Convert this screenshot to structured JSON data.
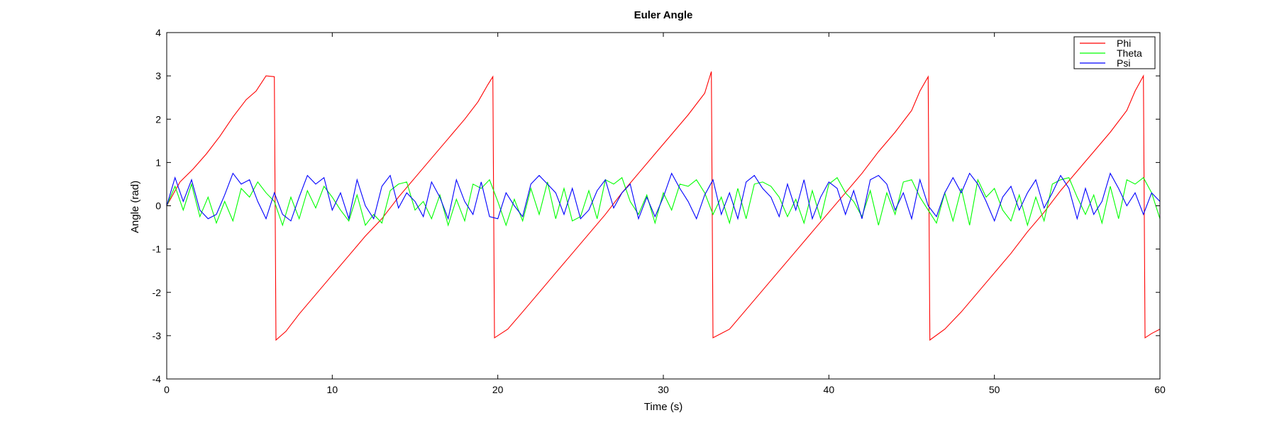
{
  "chart_data": {
    "type": "line",
    "title": "Euler Angle",
    "xlabel": "Time (s)",
    "ylabel": "Angle (rad)",
    "xlim": [
      0,
      60
    ],
    "ylim": [
      -4,
      4
    ],
    "xticks": [
      0,
      10,
      20,
      30,
      40,
      50,
      60
    ],
    "yticks": [
      -4,
      -3,
      -2,
      -1,
      0,
      1,
      2,
      3,
      4
    ],
    "grid": false,
    "legend_position": "top-right",
    "series": [
      {
        "name": "Phi",
        "color": "#ff0000",
        "x": [
          0,
          0.8,
          1.6,
          2.4,
          3.2,
          4.0,
          4.8,
          5.4,
          6.0,
          6.5,
          6.6,
          7.2,
          8.0,
          9.0,
          10.0,
          11.0,
          12.0,
          13.0,
          14.0,
          15.0,
          16.0,
          17.0,
          18.0,
          18.8,
          19.4,
          19.7,
          19.8,
          20.6,
          21.5,
          22.5,
          23.5,
          24.5,
          25.5,
          26.5,
          27.5,
          28.5,
          29.5,
          30.5,
          31.5,
          32.5,
          32.9,
          33.0,
          34.0,
          35.0,
          36.0,
          37.0,
          38.0,
          39.0,
          40.0,
          41.0,
          42.0,
          43.0,
          44.0,
          45.0,
          45.5,
          46.0,
          46.1,
          47.0,
          48.0,
          49.0,
          50.0,
          51.0,
          52.0,
          53.0,
          54.0,
          55.0,
          56.0,
          57.0,
          58.0,
          58.5,
          59.0,
          59.1,
          59.5,
          60.0
        ],
        "y": [
          0,
          0.55,
          0.85,
          1.2,
          1.6,
          2.05,
          2.45,
          2.65,
          3.0,
          2.98,
          -3.1,
          -2.9,
          -2.5,
          -2.05,
          -1.6,
          -1.15,
          -0.7,
          -0.3,
          0.2,
          0.65,
          1.1,
          1.55,
          2.0,
          2.4,
          2.8,
          2.98,
          -3.05,
          -2.85,
          -2.45,
          -2.0,
          -1.55,
          -1.1,
          -0.65,
          -0.2,
          0.3,
          0.75,
          1.2,
          1.65,
          2.1,
          2.6,
          3.1,
          -3.05,
          -2.85,
          -2.4,
          -1.95,
          -1.5,
          -1.05,
          -0.6,
          -0.15,
          0.3,
          0.75,
          1.25,
          1.7,
          2.2,
          2.65,
          2.98,
          -3.1,
          -2.85,
          -2.45,
          -2.0,
          -1.55,
          -1.1,
          -0.6,
          -0.15,
          0.35,
          0.8,
          1.25,
          1.7,
          2.2,
          2.65,
          3.0,
          -3.05,
          -2.95,
          -2.85
        ]
      },
      {
        "name": "Theta",
        "color": "#00ff00",
        "x": [
          0,
          0.5,
          1.0,
          1.5,
          2.0,
          2.5,
          3.0,
          3.5,
          4.0,
          4.5,
          5.0,
          5.5,
          6.0,
          6.5,
          7.0,
          7.5,
          8.0,
          8.5,
          9.0,
          9.5,
          10.0,
          10.5,
          11.0,
          11.5,
          12.0,
          12.5,
          13.0,
          13.5,
          14.0,
          14.5,
          15.0,
          15.5,
          16.0,
          16.5,
          17.0,
          17.5,
          18.0,
          18.5,
          19.0,
          19.5,
          20.0,
          20.5,
          21.0,
          21.5,
          22.0,
          22.5,
          23.0,
          23.5,
          24.0,
          24.5,
          25.0,
          25.5,
          26.0,
          26.5,
          27.0,
          27.5,
          28.0,
          28.5,
          29.0,
          29.5,
          30.0,
          30.5,
          31.0,
          31.5,
          32.0,
          32.5,
          33.0,
          33.5,
          34.0,
          34.5,
          35.0,
          35.5,
          36.0,
          36.5,
          37.0,
          37.5,
          38.0,
          38.5,
          39.0,
          39.5,
          40.0,
          40.5,
          41.0,
          41.5,
          42.0,
          42.5,
          43.0,
          43.5,
          44.0,
          44.5,
          45.0,
          45.5,
          46.0,
          46.5,
          47.0,
          47.5,
          48.0,
          48.5,
          49.0,
          49.5,
          50.0,
          50.5,
          51.0,
          51.5,
          52.0,
          52.5,
          53.0,
          53.5,
          54.0,
          54.5,
          55.0,
          55.5,
          56.0,
          56.5,
          57.0,
          57.5,
          58.0,
          58.5,
          59.0,
          59.5,
          60.0
        ],
        "y": [
          0,
          0.45,
          -0.1,
          0.5,
          -0.25,
          0.2,
          -0.4,
          0.1,
          -0.35,
          0.4,
          0.2,
          0.55,
          0.3,
          0.1,
          -0.45,
          0.2,
          -0.3,
          0.35,
          -0.05,
          0.45,
          0.2,
          -0.1,
          -0.35,
          0.25,
          -0.45,
          -0.2,
          -0.4,
          0.35,
          0.5,
          0.55,
          -0.1,
          0.1,
          -0.3,
          0.25,
          -0.45,
          0.15,
          -0.35,
          0.5,
          0.4,
          0.6,
          0.1,
          -0.45,
          0.15,
          -0.35,
          0.4,
          -0.2,
          0.55,
          -0.3,
          0.4,
          -0.35,
          -0.25,
          0.35,
          -0.3,
          0.6,
          0.5,
          0.65,
          0.1,
          -0.2,
          0.25,
          -0.4,
          0.3,
          -0.1,
          0.5,
          0.45,
          0.6,
          0.3,
          -0.2,
          0.2,
          -0.4,
          0.4,
          -0.3,
          0.5,
          0.55,
          0.45,
          0.2,
          -0.25,
          0.15,
          -0.4,
          0.35,
          -0.3,
          0.5,
          0.65,
          0.3,
          0.1,
          -0.25,
          0.35,
          -0.45,
          0.3,
          -0.2,
          0.55,
          0.6,
          0.2,
          -0.1,
          -0.4,
          0.3,
          -0.35,
          0.4,
          -0.45,
          0.6,
          0.2,
          0.4,
          -0.1,
          -0.35,
          0.25,
          -0.45,
          0.2,
          -0.35,
          0.5,
          0.6,
          0.65,
          0.2,
          -0.2,
          0.25,
          -0.4,
          0.45,
          -0.3,
          0.6,
          0.5,
          0.65,
          0.3,
          -0.3
        ]
      },
      {
        "name": "Psi",
        "color": "#0000ff",
        "x": [
          0,
          0.5,
          1.0,
          1.5,
          2.0,
          2.5,
          3.0,
          3.5,
          4.0,
          4.5,
          5.0,
          5.5,
          6.0,
          6.5,
          7.0,
          7.5,
          8.0,
          8.5,
          9.0,
          9.5,
          10.0,
          10.5,
          11.0,
          11.5,
          12.0,
          12.5,
          13.0,
          13.5,
          14.0,
          14.5,
          15.0,
          15.5,
          16.0,
          16.5,
          17.0,
          17.5,
          18.0,
          18.5,
          19.0,
          19.5,
          20.0,
          20.5,
          21.0,
          21.5,
          22.0,
          22.5,
          23.0,
          23.5,
          24.0,
          24.5,
          25.0,
          25.5,
          26.0,
          26.5,
          27.0,
          27.5,
          28.0,
          28.5,
          29.0,
          29.5,
          30.0,
          30.5,
          31.0,
          31.5,
          32.0,
          32.5,
          33.0,
          33.5,
          34.0,
          34.5,
          35.0,
          35.5,
          36.0,
          36.5,
          37.0,
          37.5,
          38.0,
          38.5,
          39.0,
          39.5,
          40.0,
          40.5,
          41.0,
          41.5,
          42.0,
          42.5,
          43.0,
          43.5,
          44.0,
          44.5,
          45.0,
          45.5,
          46.0,
          46.5,
          47.0,
          47.5,
          48.0,
          48.5,
          49.0,
          49.5,
          50.0,
          50.5,
          51.0,
          51.5,
          52.0,
          52.5,
          53.0,
          53.5,
          54.0,
          54.5,
          55.0,
          55.5,
          56.0,
          56.5,
          57.0,
          57.5,
          58.0,
          58.5,
          59.0,
          59.5,
          60.0
        ],
        "y": [
          0,
          0.65,
          0.1,
          0.6,
          -0.1,
          -0.3,
          -0.2,
          0.25,
          0.75,
          0.5,
          0.6,
          0.1,
          -0.3,
          0.3,
          -0.2,
          -0.35,
          0.2,
          0.7,
          0.5,
          0.65,
          -0.1,
          0.3,
          -0.3,
          0.6,
          0.0,
          -0.3,
          0.45,
          0.7,
          -0.05,
          0.3,
          0.1,
          -0.25,
          0.55,
          0.2,
          -0.3,
          0.6,
          0.1,
          -0.2,
          0.55,
          -0.25,
          -0.3,
          0.3,
          0.0,
          -0.25,
          0.5,
          0.7,
          0.5,
          0.3,
          -0.2,
          0.4,
          -0.3,
          -0.1,
          0.35,
          0.6,
          -0.05,
          0.3,
          0.5,
          -0.3,
          0.2,
          -0.25,
          0.2,
          0.75,
          0.4,
          0.1,
          -0.3,
          0.25,
          0.6,
          -0.2,
          0.3,
          -0.3,
          0.55,
          0.7,
          0.4,
          0.2,
          -0.25,
          0.5,
          -0.1,
          0.6,
          -0.3,
          0.2,
          0.55,
          0.4,
          -0.2,
          0.35,
          -0.3,
          0.6,
          0.7,
          0.5,
          -0.1,
          0.3,
          -0.3,
          0.6,
          0.0,
          -0.25,
          0.3,
          0.65,
          0.3,
          0.75,
          0.5,
          0.1,
          -0.35,
          0.2,
          0.45,
          -0.1,
          0.3,
          0.6,
          -0.05,
          0.3,
          0.7,
          0.4,
          -0.3,
          0.4,
          -0.2,
          0.1,
          0.75,
          0.4,
          0.0,
          0.3,
          -0.2,
          0.3,
          0.1
        ]
      }
    ]
  }
}
